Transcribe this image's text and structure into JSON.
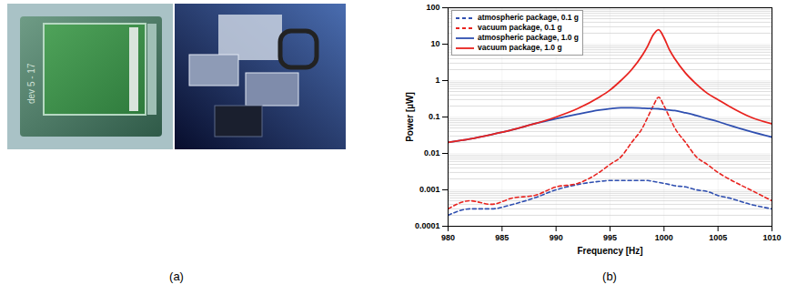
{
  "panel_labels": [
    "(a)",
    "(b)"
  ],
  "photo_text": "dev 5 - 17",
  "chart_data": {
    "type": "line",
    "x_label": "Frequency [Hz]",
    "y_label": "Power [µW]",
    "x": [
      980,
      982,
      984,
      986,
      988,
      990,
      992,
      994,
      995,
      996,
      997,
      998,
      998.5,
      999,
      999.5,
      1000,
      1000.5,
      1001,
      1002,
      1003,
      1004,
      1005,
      1006,
      1008,
      1010
    ],
    "series": [
      {
        "name": "atmospheric package, 0.1 g",
        "color": "#2f4fb0",
        "line_style": "dashed",
        "values": [
          0.0002,
          0.0003,
          0.0003,
          0.0004,
          0.0006,
          0.001,
          0.0014,
          0.0017,
          0.0018,
          0.0018,
          0.0018,
          0.0018,
          0.0018,
          0.0017,
          0.0016,
          0.0015,
          0.0014,
          0.0013,
          0.0012,
          0.001,
          0.0009,
          0.0007,
          0.0006,
          0.0004,
          0.0003
        ]
      },
      {
        "name": "vacuum package, 0.1 g",
        "color": "#e8231f",
        "line_style": "dashed",
        "values": [
          0.0003,
          0.0005,
          0.0004,
          0.0006,
          0.0007,
          0.0012,
          0.0015,
          0.003,
          0.005,
          0.008,
          0.02,
          0.05,
          0.1,
          0.2,
          0.35,
          0.2,
          0.1,
          0.05,
          0.02,
          0.008,
          0.005,
          0.003,
          0.002,
          0.001,
          0.0005
        ]
      },
      {
        "name": "atmospheric package, 1.0 g",
        "color": "#2f4fb0",
        "line_style": "solid",
        "values": [
          0.02,
          0.025,
          0.033,
          0.045,
          0.065,
          0.09,
          0.12,
          0.155,
          0.17,
          0.18,
          0.18,
          0.175,
          0.172,
          0.17,
          0.168,
          0.16,
          0.155,
          0.15,
          0.13,
          0.11,
          0.09,
          0.075,
          0.06,
          0.04,
          0.028
        ]
      },
      {
        "name": "vacuum package, 1.0 g",
        "color": "#e8231f",
        "line_style": "solid",
        "values": [
          0.02,
          0.025,
          0.033,
          0.045,
          0.065,
          0.1,
          0.17,
          0.35,
          0.55,
          1.0,
          2.0,
          5,
          9,
          18,
          25,
          15,
          7,
          4,
          1.6,
          0.8,
          0.45,
          0.3,
          0.2,
          0.1,
          0.065
        ]
      }
    ],
    "xlim": [
      980,
      1010
    ],
    "xticks": [
      980,
      985,
      990,
      995,
      1000,
      1005,
      1010
    ],
    "ylim": [
      0.0001,
      100
    ],
    "yticks": [
      0.0001,
      0.001,
      0.01,
      0.1,
      1,
      10,
      100
    ],
    "log": "y",
    "grid": true,
    "legend": "top-left"
  }
}
